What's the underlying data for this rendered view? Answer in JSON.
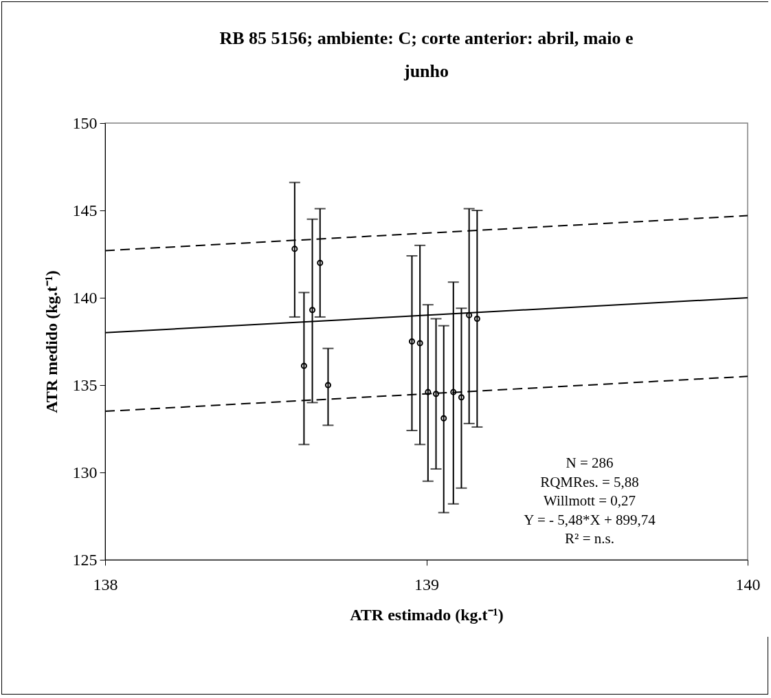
{
  "chart_data": {
    "type": "scatter",
    "title": "RB 85 5156; ambiente: C; corte anterior: abril, maio e junho",
    "xlabel": "ATR estimado (kg.t⁻¹)",
    "ylabel": "ATR medido (kg.t⁻¹)",
    "xlim": [
      138,
      140
    ],
    "ylim": [
      125,
      150
    ],
    "xticks": [
      138,
      139,
      140
    ],
    "yticks": [
      125,
      130,
      135,
      140,
      145,
      150
    ],
    "grid": false,
    "marker": "circle",
    "series": [
      {
        "type": "line",
        "color": "#000000",
        "line_style": "dashed",
        "marker": "none",
        "x": [
          138,
          140
        ],
        "values": [
          133.5,
          135.5
        ]
      },
      {
        "type": "line",
        "color": "#000000",
        "line_style": "solid",
        "marker": "none",
        "x": [
          138,
          140
        ],
        "values": [
          138,
          140
        ]
      },
      {
        "type": "line",
        "color": "#000000",
        "line_style": "dashed",
        "marker": "none",
        "x": [
          138,
          140
        ],
        "values": [
          142.7,
          144.7
        ]
      },
      {
        "color": "#000000",
        "x": [
          138.59,
          138.619,
          138.645,
          138.669,
          138.694,
          138.955,
          138.98,
          139.005,
          139.03,
          139.054,
          139.084,
          139.109,
          139.133,
          139.158
        ],
        "values": [
          142.8,
          136.1,
          139.3,
          142.0,
          135.0,
          137.5,
          137.4,
          134.6,
          134.5,
          133.1,
          134.6,
          134.3,
          139.0,
          138.8
        ],
        "errors": [
          [
            138.9,
            146.6
          ],
          [
            131.6,
            140.3
          ],
          [
            134.0,
            144.5
          ],
          [
            138.9,
            145.1
          ],
          [
            132.7,
            137.1
          ],
          [
            132.4,
            142.4
          ],
          [
            131.6,
            143.0
          ],
          [
            129.5,
            139.6
          ],
          [
            130.2,
            138.8
          ],
          [
            127.7,
            138.4
          ],
          [
            128.2,
            140.9
          ],
          [
            129.1,
            139.4
          ],
          [
            132.8,
            145.1
          ],
          [
            132.6,
            145.0
          ]
        ]
      }
    ],
    "annotations": [
      "N = 286",
      "RQMRes. = 5,88",
      "Willmott = 0,27",
      "Y = - 5,48*X + 899,74",
      "R² = n.s."
    ]
  }
}
